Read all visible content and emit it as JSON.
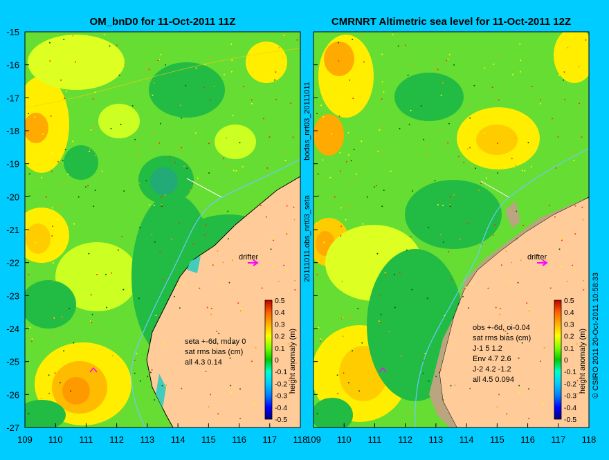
{
  "left_panel": {
    "title": "OM_bnD0 for 11-Oct-2011 11Z",
    "drifter_label": "drifter",
    "stats": [
      "seta +-6d, mday 0",
      "sat rms bias (cm)",
      "all 4.3 0.14"
    ]
  },
  "right_panel": {
    "title": "CMRNRT Altimetric sea level  for 11-Oct-2011 12Z",
    "drifter_label": "drifter",
    "stats": [
      "obs +-6d, oi-0.04",
      "sat rms bias (cm)",
      "J-1    5 1.2",
      "Env   4.7 2.6",
      "J-2   4.2 -1.2",
      "all 4.5 0.094"
    ]
  },
  "side_labels": {
    "top": "bodas_nrt03_20111011",
    "bottom": "20111011.obs_nrt03_seta",
    "credit": "© CSIRO 2011  20-Oct-2011 10:58:33"
  },
  "colorbar": {
    "ticks": [
      "0.5",
      "0.4",
      "0.3",
      "0.2",
      "0.1",
      "0",
      "-0.1",
      "-0.2",
      "-0.3",
      "-0.4",
      "-0.5"
    ],
    "label": "height anomaly (m)",
    "colors": [
      "#000080",
      "#0000ff",
      "#0080ff",
      "#00ccff",
      "#00ffcc",
      "#00cc00",
      "#80ff00",
      "#ffff00",
      "#ffb000",
      "#ff6000",
      "#c00000"
    ]
  },
  "axes": {
    "y_ticks": [
      "-15",
      "-16",
      "-17",
      "-18",
      "-19",
      "-20",
      "-21",
      "-22",
      "-23",
      "-24",
      "-25",
      "-26",
      "-27"
    ],
    "x_ticks": [
      "109",
      "110",
      "111",
      "112",
      "113",
      "114",
      "115",
      "116",
      "117",
      "118"
    ],
    "lon_range": [
      109,
      118
    ],
    "lat_range": [
      -15,
      -27
    ]
  },
  "colors": {
    "background": "#00ccff",
    "land": "#ffcc99",
    "sea_base": "#66dd33",
    "drifter_arrow": "#ff00ff"
  }
}
